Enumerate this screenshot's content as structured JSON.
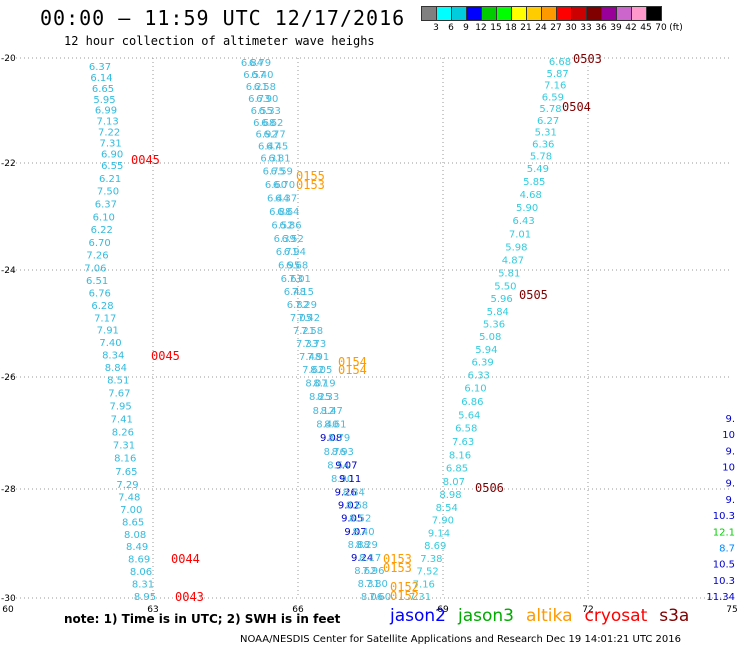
{
  "header": {
    "title": "00:00 – 11:59 UTC 12/17/2016",
    "subtitle": "12 hour collection of altimeter wave heighs"
  },
  "legend": {
    "colors": [
      "#808080",
      "#00ffff",
      "#00ccdd",
      "#0000ff",
      "#00cc00",
      "#00ff00",
      "#ffff00",
      "#ffcc00",
      "#ff9900",
      "#ff0000",
      "#cc0000",
      "#800000",
      "#990099",
      "#cc66cc",
      "#ff99cc",
      "#000000"
    ],
    "labels": [
      "3",
      "6",
      "9",
      "12",
      "15",
      "18",
      "21",
      "24",
      "27",
      "30",
      "33",
      "36",
      "39",
      "42",
      "45",
      "70",
      "(ft)"
    ]
  },
  "axes": {
    "y_ticks": [
      "-20",
      "-22",
      "-24",
      "-26",
      "-28",
      "-30"
    ],
    "x_ticks": [
      "60",
      "63",
      "66",
      "69",
      "72",
      "75"
    ]
  },
  "tracks": [
    {
      "name": "track-a",
      "color": "#33bbdd",
      "values": [
        "6.37",
        "6.14",
        "6.65",
        "5.95",
        "6.99",
        "7.13",
        "7.22",
        "7.31",
        "6.90",
        "6.55",
        "6.21",
        "7.50",
        "6.37",
        "6.10",
        "6.22",
        "6.70",
        "7.26",
        "7.06",
        "6.51",
        "6.76",
        "6.28",
        "7.17",
        "7.91",
        "7.40",
        "8.34",
        "8.84",
        "8.51",
        "7.67",
        "7.95",
        "7.41",
        "8.26",
        "7.31",
        "8.16",
        "7.65",
        "7.29",
        "7.48",
        "7.00",
        "8.65",
        "8.08",
        "8.49",
        "8.69",
        "8.06",
        "8.31",
        "8.95"
      ]
    },
    {
      "name": "track-b",
      "color": "#33ccdd",
      "values": [
        "6.68",
        "5.87",
        "7.16",
        "6.59",
        "5.78",
        "6.27",
        "5.31",
        "6.36",
        "5.78",
        "5.49",
        "5.85",
        "4.68",
        "5.90",
        "6.43",
        "7.01",
        "5.98",
        "4.87",
        "5.81",
        "5.50",
        "5.96",
        "5.84",
        "5.36",
        "5.08",
        "5.94",
        "6.39",
        "6.33",
        "6.10",
        "6.86",
        "5.64",
        "6.58",
        "7.63",
        "8.16",
        "6.85",
        "8.07",
        "8.98",
        "8.54",
        "7.90",
        "9.14",
        "8.69",
        "7.38",
        "7.52",
        "7.16",
        "7.31"
      ]
    },
    {
      "name": "track-c-left",
      "color": "#44bbdd",
      "values": [
        "6.84",
        "6.57",
        "6.21",
        "6.73",
        "6.55",
        "6.68",
        "6.92",
        "6.47",
        "6.31",
        "6.75",
        "6.60",
        "6.44",
        "6.88",
        "6.52",
        "6.39",
        "6.71",
        "6.95",
        "6.63",
        "6.48",
        "6.82",
        "7.05",
        "7.21",
        "7.33",
        "7.48",
        "7.62",
        "8.07",
        "8.25",
        "8.12",
        "8.40",
        "9.08",
        "8.76",
        "8.54",
        "8.90",
        "9.26",
        "9.02",
        "9.05",
        "9.07",
        "8.88",
        "9.24",
        "8.62",
        "8.31",
        "8.06"
      ]
    },
    {
      "name": "track-c-right",
      "color": "#44bbdd",
      "values": [
        "6.79",
        "6.40",
        "6.58",
        "6.90",
        "6.33",
        "6.62",
        "6.77",
        "6.45",
        "6.81",
        "6.59",
        "6.70",
        "6.37",
        "6.64",
        "6.86",
        "6.52",
        "6.94",
        "6.68",
        "7.01",
        "7.15",
        "7.29",
        "7.42",
        "7.58",
        "7.73",
        "7.91",
        "8.05",
        "8.19",
        "8.33",
        "8.47",
        "8.61",
        "8.79",
        "8.93",
        "9.07",
        "9.11",
        "8.84",
        "8.68",
        "8.52",
        "8.40",
        "8.29",
        "8.17",
        "7.96",
        "7.80",
        "7.60"
      ]
    },
    {
      "name": "track-edge",
      "color": "#0088ff",
      "values": [
        "9.",
        "10",
        "9.",
        "10",
        "9.",
        "9.",
        "10.3",
        "12.1",
        "8.7",
        "10.5",
        "10.3",
        "11.34"
      ]
    }
  ],
  "times": [
    {
      "label": "0503",
      "color": "#800000"
    },
    {
      "label": "0504",
      "color": "#800000"
    },
    {
      "label": "0045",
      "color": "#ff0000"
    },
    {
      "label": "0155",
      "color": "#ff9900"
    },
    {
      "label": "0153",
      "color": "#ff9900"
    },
    {
      "label": "0505",
      "color": "#800000"
    },
    {
      "label": "0045",
      "color": "#ff0000"
    },
    {
      "label": "0154",
      "color": "#ff9900"
    },
    {
      "label": "0154",
      "color": "#ff9900"
    },
    {
      "label": "0506",
      "color": "#800000"
    },
    {
      "label": "0153",
      "color": "#ff9900"
    },
    {
      "label": "0153",
      "color": "#ff9900"
    },
    {
      "label": "0044",
      "color": "#ff0000"
    },
    {
      "label": "0152",
      "color": "#ff9900"
    },
    {
      "label": "0152",
      "color": "#ff9900"
    },
    {
      "label": "0043",
      "color": "#ff0000"
    }
  ],
  "footer": {
    "note": "note: 1) Time is in UTC; 2) SWH is in feet",
    "satellites": [
      {
        "label": "jason2",
        "color": "#0000ff"
      },
      {
        "label": "jason3",
        "color": "#00aa00"
      },
      {
        "label": "altika",
        "color": "#ff9900"
      },
      {
        "label": "cryosat",
        "color": "#ff0000"
      },
      {
        "label": "s3a",
        "color": "#800000"
      }
    ],
    "credit": "NOAA/NESDIS Center for Satellite Applications and Research    Dec 19 14:01:21 UTC 2016"
  }
}
